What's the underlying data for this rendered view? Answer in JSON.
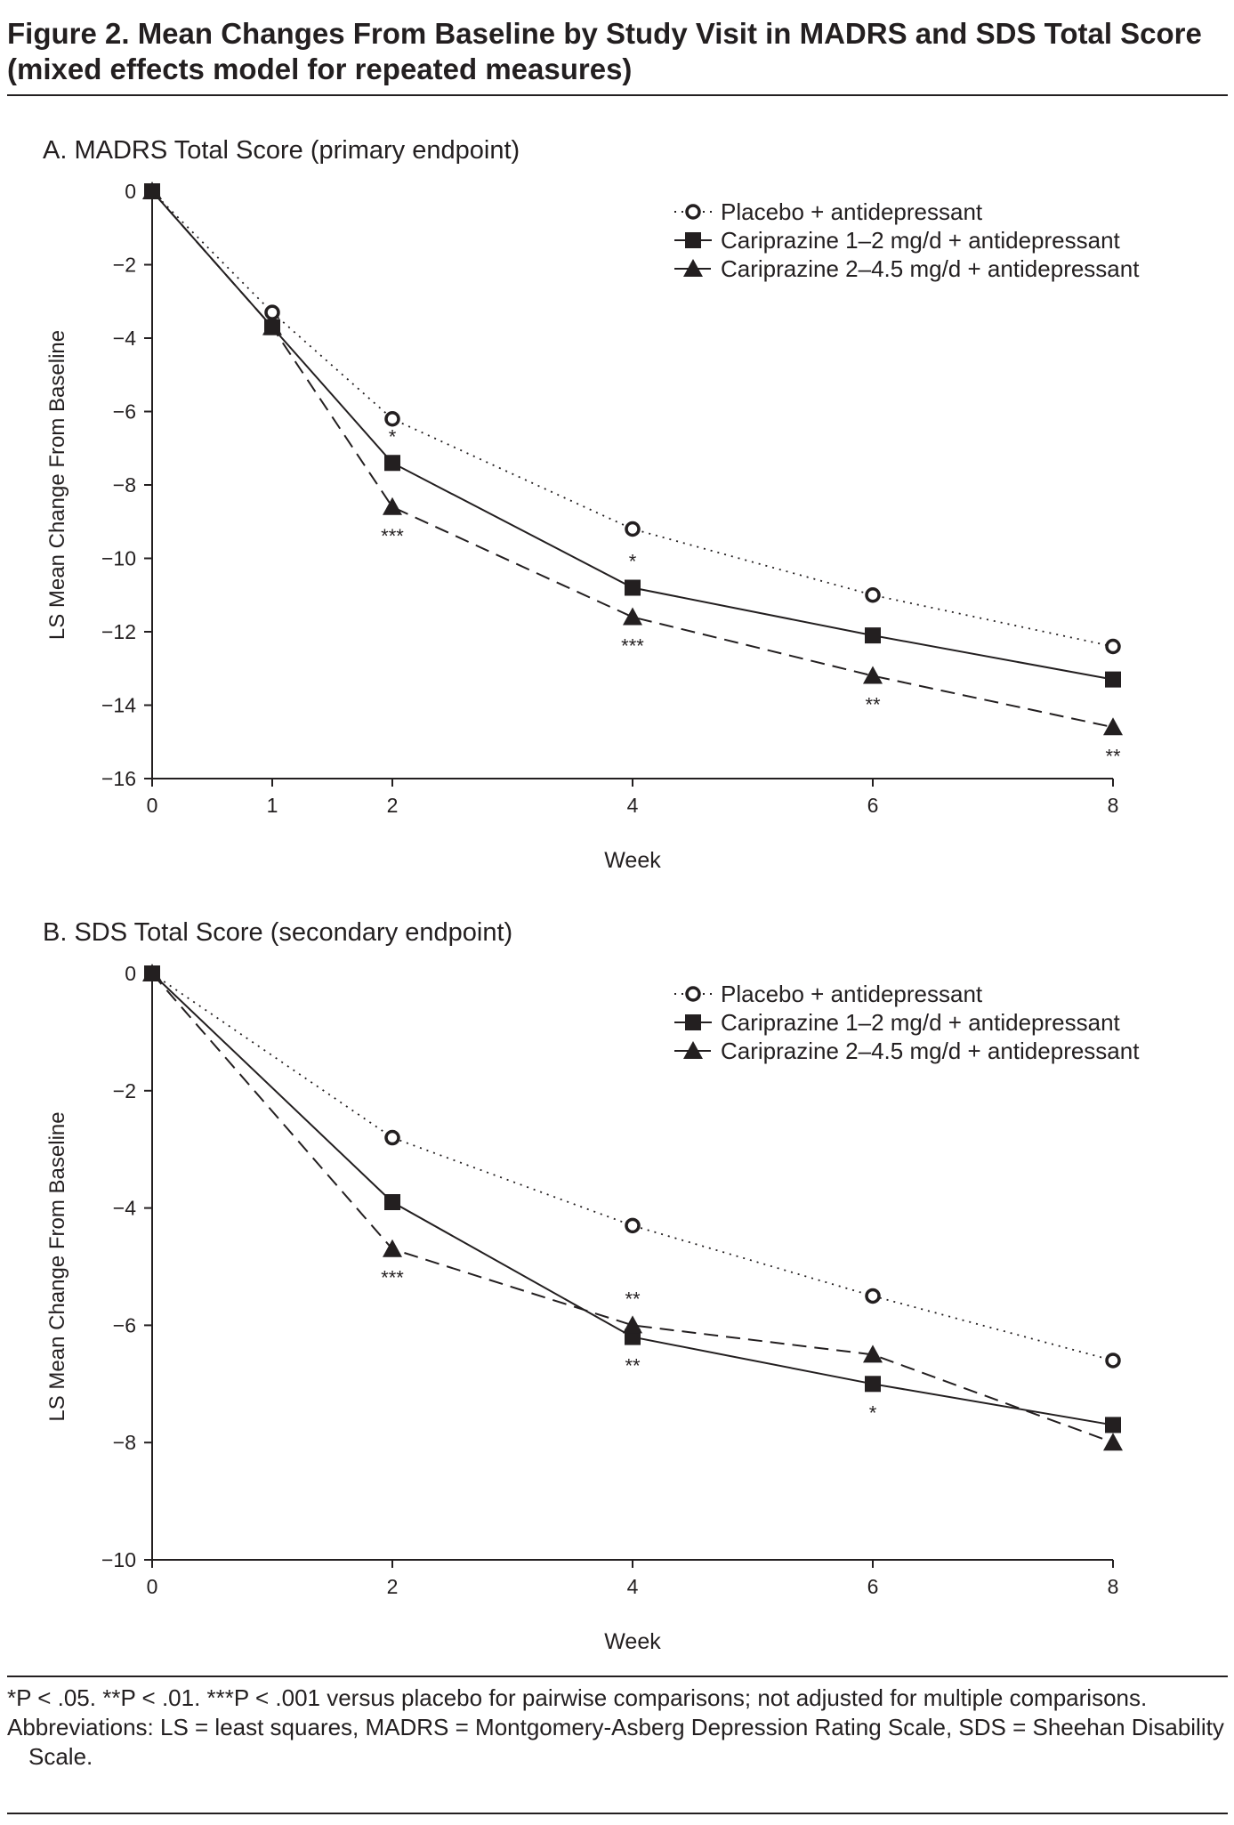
{
  "figure": {
    "title": "Figure 2. Mean Changes From Baseline by Study Visit in MADRS and SDS Total Score (mixed effects model for repeated measures)",
    "footnotes": [
      "*P < .05.  **P < .01.  ***P < .001 versus placebo for pairwise comparisons; not adjusted for multiple comparisons.",
      "Abbreviations: LS = least squares, MADRS = Montgomery-Asberg Depression Rating Scale, SDS = Sheehan Disability Scale."
    ]
  },
  "chart_data": [
    {
      "type": "line",
      "title": "A. MADRS Total Score (primary endpoint)",
      "xlabel": "Week",
      "ylabel": "LS Mean Change From Baseline",
      "xlim": [
        0,
        8
      ],
      "ylim": [
        -16,
        0
      ],
      "xticks": [
        0,
        1,
        2,
        4,
        6,
        8
      ],
      "yticks": [
        0,
        -2,
        -4,
        -6,
        -8,
        -10,
        -12,
        -14,
        -16
      ],
      "grid": false,
      "legend": "top-right",
      "series": [
        {
          "name": "Placebo + antidepressant",
          "marker": "open-circle",
          "line": "dotted",
          "x": [
            0,
            1,
            2,
            4,
            6,
            8
          ],
          "y": [
            0,
            -3.3,
            -6.2,
            -9.2,
            -11.0,
            -12.4
          ]
        },
        {
          "name": "Cariprazine 1–2 mg/d + antidepressant",
          "marker": "filled-square",
          "line": "solid",
          "x": [
            0,
            1,
            2,
            4,
            6,
            8
          ],
          "y": [
            0,
            -3.7,
            -7.4,
            -10.8,
            -12.1,
            -13.3
          ]
        },
        {
          "name": "Cariprazine 2–4.5 mg/d + antidepressant",
          "marker": "filled-triangle",
          "line": "dashed",
          "x": [
            0,
            1,
            2,
            4,
            6,
            8
          ],
          "y": [
            0,
            -3.7,
            -8.6,
            -11.6,
            -13.2,
            -14.6
          ]
        }
      ],
      "annotations": [
        {
          "series": 1,
          "x": 2,
          "text": "*",
          "position": "above"
        },
        {
          "series": 2,
          "x": 2,
          "text": "***",
          "position": "below"
        },
        {
          "series": 1,
          "x": 4,
          "text": "*",
          "position": "above"
        },
        {
          "series": 2,
          "x": 4,
          "text": "***",
          "position": "below"
        },
        {
          "series": 2,
          "x": 6,
          "text": "**",
          "position": "below"
        },
        {
          "series": 2,
          "x": 8,
          "text": "**",
          "position": "below"
        }
      ]
    },
    {
      "type": "line",
      "title": "B. SDS Total Score (secondary endpoint)",
      "xlabel": "Week",
      "ylabel": "LS Mean Change From Baseline",
      "xlim": [
        0,
        8
      ],
      "ylim": [
        -10,
        0
      ],
      "xticks": [
        0,
        2,
        4,
        6,
        8
      ],
      "yticks": [
        0,
        -2,
        -4,
        -6,
        -8,
        -10
      ],
      "grid": false,
      "legend": "top-right",
      "series": [
        {
          "name": "Placebo + antidepressant",
          "marker": "open-circle",
          "line": "dotted",
          "x": [
            0,
            2,
            4,
            6,
            8
          ],
          "y": [
            0,
            -2.8,
            -4.3,
            -5.5,
            -6.6
          ]
        },
        {
          "name": "Cariprazine 1–2 mg/d + antidepressant",
          "marker": "filled-square",
          "line": "solid",
          "x": [
            0,
            2,
            4,
            6,
            8
          ],
          "y": [
            0,
            -3.9,
            -6.2,
            -7.0,
            -7.7
          ]
        },
        {
          "name": "Cariprazine 2–4.5 mg/d + antidepressant",
          "marker": "filled-triangle",
          "line": "dashed",
          "x": [
            0,
            2,
            4,
            6,
            8
          ],
          "y": [
            0,
            -4.7,
            -6.0,
            -6.5,
            -8.0
          ]
        }
      ],
      "annotations": [
        {
          "series": 2,
          "x": 2,
          "text": "***",
          "position": "below"
        },
        {
          "series": 2,
          "x": 4,
          "text": "**",
          "position": "above"
        },
        {
          "series": 1,
          "x": 4,
          "text": "**",
          "position": "below"
        },
        {
          "series": 1,
          "x": 6,
          "text": "*",
          "position": "below"
        }
      ]
    }
  ]
}
